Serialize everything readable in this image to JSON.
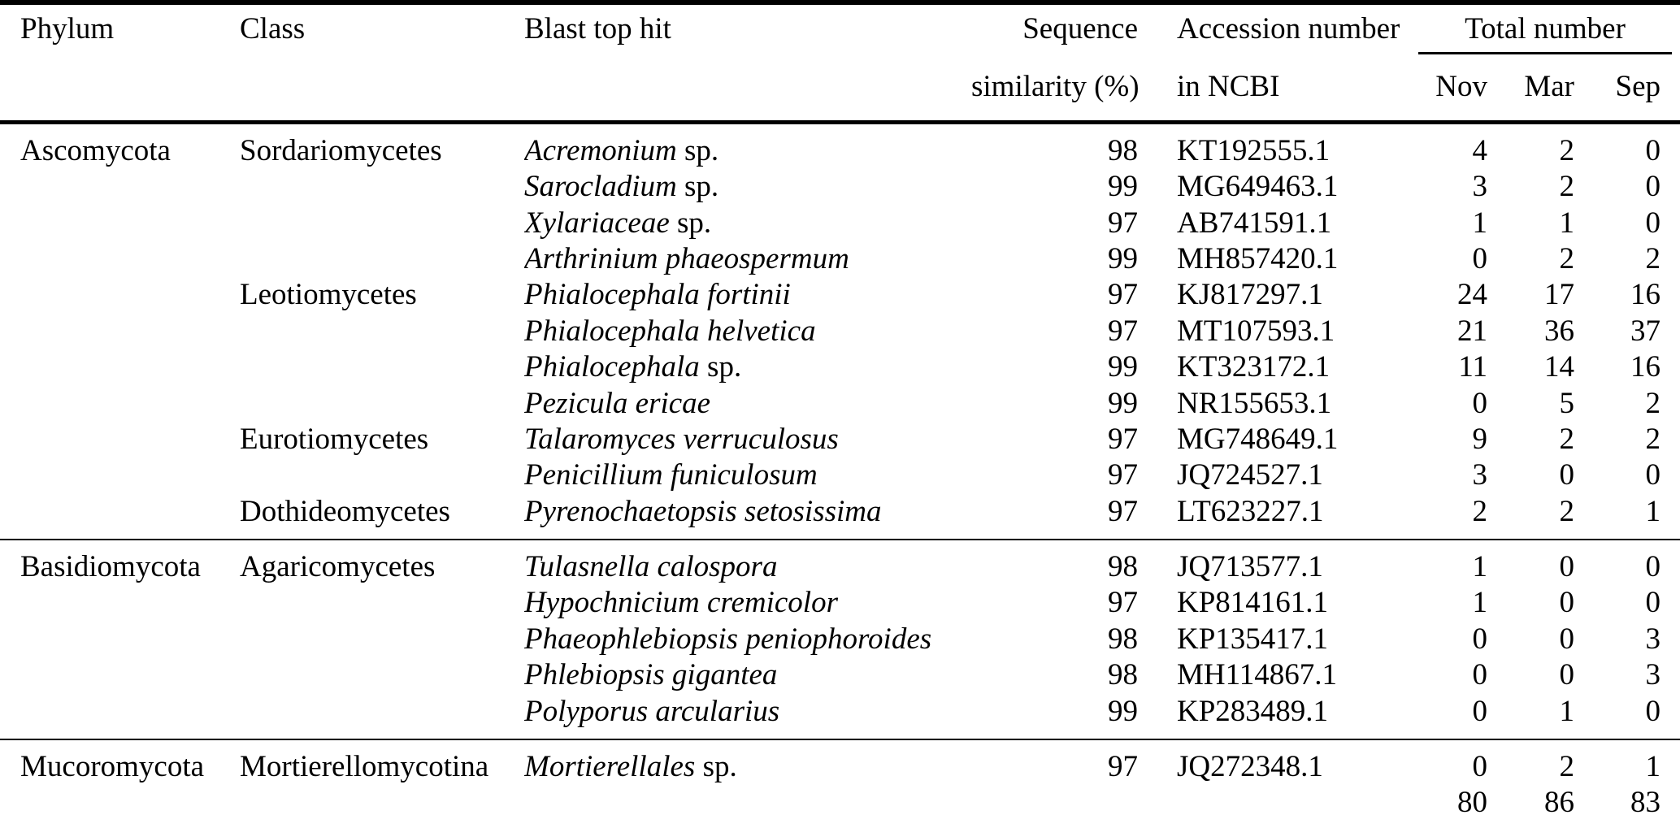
{
  "page": {
    "background_color": "#ffffff",
    "text_color": "#000000",
    "rule_color": "#000000"
  },
  "table": {
    "header": {
      "phylum": "Phylum",
      "class": "Class",
      "blast_top_hit": "Blast top hit",
      "sequence_line1": "Sequence",
      "sequence_line2": "similarity (%)",
      "accession_line1": "Accession number",
      "accession_line2": "in NCBI",
      "total_number": "Total number",
      "nov": "Nov",
      "mar": "Mar",
      "sep": "Sep"
    },
    "sections": [
      {
        "divider": false,
        "rows": [
          {
            "phylum": "Ascomycota",
            "class": "Sordariomycetes",
            "species": "Acremonium",
            "suffix": " sp.",
            "similarity": "98",
            "accession": "KT192555.1",
            "nov": "4",
            "mar": "2",
            "sep": "0"
          },
          {
            "phylum": "",
            "class": "",
            "species": "Sarocladium",
            "suffix": " sp.",
            "similarity": "99",
            "accession": "MG649463.1",
            "nov": "3",
            "mar": "2",
            "sep": "0"
          },
          {
            "phylum": "",
            "class": "",
            "species": "Xylariaceae",
            "suffix": " sp.",
            "similarity": "97",
            "accession": "AB741591.1",
            "nov": "1",
            "mar": "1",
            "sep": "0"
          },
          {
            "phylum": "",
            "class": "",
            "species": "Arthrinium phaeospermum",
            "suffix": "",
            "similarity": "99",
            "accession": "MH857420.1",
            "nov": "0",
            "mar": "2",
            "sep": "2"
          },
          {
            "phylum": "",
            "class": "Leotiomycetes",
            "species": "Phialocephala fortinii",
            "suffix": "",
            "similarity": "97",
            "accession": "KJ817297.1",
            "nov": "24",
            "mar": "17",
            "sep": "16"
          },
          {
            "phylum": "",
            "class": "",
            "species": "Phialocephala helvetica",
            "suffix": "",
            "similarity": "97",
            "accession": "MT107593.1",
            "nov": "21",
            "mar": "36",
            "sep": "37"
          },
          {
            "phylum": "",
            "class": "",
            "species": "Phialocephala",
            "suffix": " sp.",
            "similarity": "99",
            "accession": "KT323172.1",
            "nov": "11",
            "mar": "14",
            "sep": "16"
          },
          {
            "phylum": "",
            "class": "",
            "species": "Pezicula ericae",
            "suffix": "",
            "similarity": "99",
            "accession": "NR155653.1",
            "nov": "0",
            "mar": "5",
            "sep": "2"
          },
          {
            "phylum": "",
            "class": "Eurotiomycetes",
            "species": "Talaromyces verruculosus",
            "suffix": "",
            "similarity": "97",
            "accession": "MG748649.1",
            "nov": "9",
            "mar": "2",
            "sep": "2"
          },
          {
            "phylum": "",
            "class": "",
            "species": "Penicillium funiculosum",
            "suffix": "",
            "similarity": "97",
            "accession": "JQ724527.1",
            "nov": "3",
            "mar": "0",
            "sep": "0"
          },
          {
            "phylum": "",
            "class": "Dothideomycetes",
            "species": "Pyrenochaetopsis setosissima",
            "suffix": "",
            "similarity": "97",
            "accession": "LT623227.1",
            "nov": "2",
            "mar": "2",
            "sep": "1"
          }
        ]
      },
      {
        "divider": true,
        "rows": [
          {
            "phylum": "Basidiomycota",
            "class": "Agaricomycetes",
            "species": "Tulasnella calospora",
            "suffix": "",
            "similarity": "98",
            "accession": "JQ713577.1",
            "nov": "1",
            "mar": "0",
            "sep": "0"
          },
          {
            "phylum": "",
            "class": "",
            "species": "Hypochnicium cremicolor",
            "suffix": "",
            "similarity": "97",
            "accession": "KP814161.1",
            "nov": "1",
            "mar": "0",
            "sep": "0"
          },
          {
            "phylum": "",
            "class": "",
            "species": "Phaeophlebiopsis peniophoroides",
            "suffix": "",
            "similarity": "98",
            "accession": "KP135417.1",
            "nov": "0",
            "mar": "0",
            "sep": "3"
          },
          {
            "phylum": "",
            "class": "",
            "species": "Phlebiopsis gigantea",
            "suffix": "",
            "similarity": "98",
            "accession": "MH114867.1",
            "nov": "0",
            "mar": "0",
            "sep": "3"
          },
          {
            "phylum": "",
            "class": "",
            "species": "Polyporus arcularius",
            "suffix": "",
            "similarity": "99",
            "accession": "KP283489.1",
            "nov": "0",
            "mar": "1",
            "sep": "0"
          }
        ]
      },
      {
        "divider": true,
        "rows": [
          {
            "phylum": "Mucoromycota",
            "class": "Mortierellomycotina",
            "species": "Mortierellales",
            "suffix": " sp.",
            "similarity": "97",
            "accession": "JQ272348.1",
            "nov": "0",
            "mar": "2",
            "sep": "1"
          },
          {
            "phylum": "",
            "class": "",
            "species": "",
            "suffix": "",
            "similarity": "",
            "accession": "",
            "nov": "80",
            "mar": "86",
            "sep": "83",
            "total": true
          }
        ]
      }
    ]
  }
}
